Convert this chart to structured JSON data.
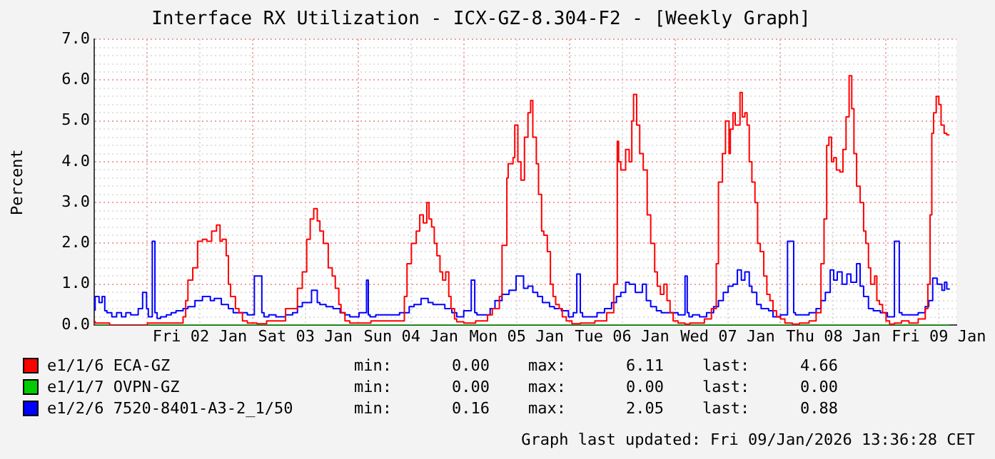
{
  "chart_data": {
    "type": "step",
    "title": "Interface RX Utilization - ICX-GZ-8.304-F2 - [Weekly Graph]",
    "ylabel": "Percent",
    "xlim": [
      "2026-01-01T12:00",
      "2026-01-09T16:00"
    ],
    "xticks": [
      {
        "value": "2026-01-02T00:00",
        "label": null
      },
      {
        "value": "2026-01-02T12:00",
        "label": "Fri 02 Jan"
      },
      {
        "value": "2026-01-03T00:00",
        "label": null
      },
      {
        "value": "2026-01-03T12:00",
        "label": "Sat 03 Jan"
      },
      {
        "value": "2026-01-04T00:00",
        "label": null
      },
      {
        "value": "2026-01-04T12:00",
        "label": "Sun 04 Jan"
      },
      {
        "value": "2026-01-05T00:00",
        "label": null
      },
      {
        "value": "2026-01-05T12:00",
        "label": "Mon 05 Jan"
      },
      {
        "value": "2026-01-06T00:00",
        "label": null
      },
      {
        "value": "2026-01-06T12:00",
        "label": "Tue 06 Jan"
      },
      {
        "value": "2026-01-07T00:00",
        "label": null
      },
      {
        "value": "2026-01-07T12:00",
        "label": "Wed 07 Jan"
      },
      {
        "value": "2026-01-08T00:00",
        "label": null
      },
      {
        "value": "2026-01-08T12:00",
        "label": "Thu 08 Jan"
      },
      {
        "value": "2026-01-09T00:00",
        "label": null
      },
      {
        "value": "2026-01-09T12:00",
        "label": "Fri 09 Jan"
      }
    ],
    "ylim": [
      0,
      7
    ],
    "yticks": [
      {
        "value": 0,
        "label": "0.0"
      },
      {
        "value": 0.2,
        "label": null
      },
      {
        "value": 0.4,
        "label": null
      },
      {
        "value": 0.6,
        "label": null
      },
      {
        "value": 0.8,
        "label": null
      },
      {
        "value": 1,
        "label": "1.0"
      },
      {
        "value": 1.2,
        "label": null
      },
      {
        "value": 1.4,
        "label": null
      },
      {
        "value": 1.6,
        "label": null
      },
      {
        "value": 1.8,
        "label": null
      },
      {
        "value": 2,
        "label": "2.0"
      },
      {
        "value": 2.2,
        "label": null
      },
      {
        "value": 2.4,
        "label": null
      },
      {
        "value": 2.6,
        "label": null
      },
      {
        "value": 2.8,
        "label": null
      },
      {
        "value": 3,
        "label": "3.0"
      },
      {
        "value": 3.2,
        "label": null
      },
      {
        "value": 3.4,
        "label": null
      },
      {
        "value": 3.6,
        "label": null
      },
      {
        "value": 3.8,
        "label": null
      },
      {
        "value": 4,
        "label": "4.0"
      },
      {
        "value": 4.2,
        "label": null
      },
      {
        "value": 4.4,
        "label": null
      },
      {
        "value": 4.6,
        "label": null
      },
      {
        "value": 4.8,
        "label": null
      },
      {
        "value": 5,
        "label": "5.0"
      },
      {
        "value": 5.2,
        "label": null
      },
      {
        "value": 5.4,
        "label": null
      },
      {
        "value": 5.6,
        "label": null
      },
      {
        "value": 5.8,
        "label": null
      },
      {
        "value": 6,
        "label": "6.0"
      },
      {
        "value": 6.2,
        "label": null
      },
      {
        "value": 6.4,
        "label": null
      },
      {
        "value": 6.6,
        "label": null
      },
      {
        "value": 6.8,
        "label": null
      },
      {
        "value": 7,
        "label": "7.0"
      }
    ],
    "grid": true,
    "legend": "bottom left",
    "marker": "none",
    "line_style": "solid",
    "series": [
      {
        "name": "e1/1/6 ECA-GZ",
        "color": "#ff0000",
        "x": [
          "2026-01-01T12:12",
          "2026-01-01T15:30",
          "2026-01-02T00:06",
          "2026-01-02T04:24",
          "2026-01-02T08:12",
          "2026-01-02T08:48",
          "2026-01-02T09:18",
          "2026-01-02T10:24",
          "2026-01-02T11:30",
          "2026-01-02T12:36",
          "2026-01-02T13:36",
          "2026-01-02T14:42",
          "2026-01-02T15:48",
          "2026-01-02T16:36",
          "2026-01-02T17:06",
          "2026-01-02T18:00",
          "2026-01-02T18:30",
          "2026-01-02T19:00",
          "2026-01-02T20:06",
          "2026-01-02T20:54",
          "2026-01-02T21:42",
          "2026-01-02T22:48",
          "2026-01-03T01:00",
          "2026-01-03T03:12",
          "2026-01-03T07:30",
          "2026-01-03T10:12",
          "2026-01-03T11:18",
          "2026-01-03T12:18",
          "2026-01-03T13:06",
          "2026-01-03T13:54",
          "2026-01-03T14:42",
          "2026-01-03T15:18",
          "2026-01-03T16:06",
          "2026-01-03T17:12",
          "2026-01-03T18:06",
          "2026-01-03T18:48",
          "2026-01-03T19:36",
          "2026-01-03T20:06",
          "2026-01-03T21:00",
          "2026-01-03T22:06",
          "2026-01-03T23:42",
          "2026-01-04T02:54",
          "2026-01-04T06:12",
          "2026-01-04T08:24",
          "2026-01-04T10:30",
          "2026-01-04T11:06",
          "2026-01-04T12:06",
          "2026-01-04T13:12",
          "2026-01-04T14:00",
          "2026-01-04T14:48",
          "2026-01-04T15:36",
          "2026-01-04T16:06",
          "2026-01-04T16:42",
          "2026-01-04T17:18",
          "2026-01-04T17:54",
          "2026-01-04T18:36",
          "2026-01-04T19:12",
          "2026-01-04T19:54",
          "2026-01-04T20:36",
          "2026-01-04T21:06",
          "2026-01-04T21:54",
          "2026-01-04T22:24",
          "2026-01-05T00:00",
          "2026-01-05T02:42",
          "2026-01-05T05:24",
          "2026-01-05T06:30",
          "2026-01-05T08:06",
          "2026-01-05T08:42",
          "2026-01-05T09:48",
          "2026-01-05T10:06",
          "2026-01-05T11:12",
          "2026-01-05T11:36",
          "2026-01-05T12:18",
          "2026-01-05T13:00",
          "2026-01-05T13:48",
          "2026-01-05T14:36",
          "2026-01-05T15:12",
          "2026-01-05T15:42",
          "2026-01-05T16:30",
          "2026-01-05T17:00",
          "2026-01-05T17:42",
          "2026-01-05T18:12",
          "2026-01-05T19:00",
          "2026-01-05T19:42",
          "2026-01-05T20:18",
          "2026-01-05T20:54",
          "2026-01-05T21:42",
          "2026-01-05T22:24",
          "2026-01-05T23:18",
          "2026-01-06T00:36",
          "2026-01-06T02:30",
          "2026-01-06T05:48",
          "2026-01-06T08:30",
          "2026-01-06T10:06",
          "2026-01-06T10:54",
          "2026-01-06T11:12",
          "2026-01-06T11:42",
          "2026-01-06T12:48",
          "2026-01-06T13:36",
          "2026-01-06T14:12",
          "2026-01-06T14:36",
          "2026-01-06T15:18",
          "2026-01-06T16:00",
          "2026-01-06T16:48",
          "2026-01-06T17:42",
          "2026-01-06T18:30",
          "2026-01-06T19:24",
          "2026-01-06T20:00",
          "2026-01-06T20:42",
          "2026-01-06T21:30",
          "2026-01-06T22:12",
          "2026-01-06T22:54",
          "2026-01-06T23:36",
          "2026-01-07T00:42",
          "2026-01-07T02:18",
          "2026-01-07T03:24",
          "2026-01-07T06:42",
          "2026-01-07T08:18",
          "2026-01-07T09:24",
          "2026-01-07T09:54",
          "2026-01-07T10:48",
          "2026-01-07T11:30",
          "2026-01-07T12:18",
          "2026-01-07T12:36",
          "2026-01-07T13:12",
          "2026-01-07T13:42",
          "2026-01-07T14:12",
          "2026-01-07T14:48",
          "2026-01-07T15:18",
          "2026-01-07T15:54",
          "2026-01-07T16:24",
          "2026-01-07T16:54",
          "2026-01-07T17:30",
          "2026-01-07T18:12",
          "2026-01-07T18:48",
          "2026-01-07T19:24",
          "2026-01-07T20:12",
          "2026-01-07T20:54",
          "2026-01-07T21:36",
          "2026-01-07T22:18",
          "2026-01-07T23:06",
          "2026-01-08T00:00",
          "2026-01-08T01:00",
          "2026-01-08T02:42",
          "2026-01-08T04:18",
          "2026-01-08T06:30",
          "2026-01-08T08:06",
          "2026-01-08T09:12",
          "2026-01-08T09:54",
          "2026-01-08T10:30",
          "2026-01-08T11:00",
          "2026-01-08T11:36",
          "2026-01-08T12:06",
          "2026-01-08T12:42",
          "2026-01-08T13:30",
          "2026-01-08T14:12",
          "2026-01-08T14:54",
          "2026-01-08T15:36",
          "2026-01-08T16:12",
          "2026-01-08T16:42",
          "2026-01-08T17:18",
          "2026-01-08T18:06",
          "2026-01-08T18:54",
          "2026-01-08T19:24",
          "2026-01-08T20:00",
          "2026-01-08T20:30",
          "2026-01-08T21:24",
          "2026-01-08T21:54",
          "2026-01-08T22:30",
          "2026-01-08T23:12",
          "2026-01-09T00:00",
          "2026-01-09T00:48",
          "2026-01-09T01:54",
          "2026-01-09T03:30",
          "2026-01-09T05:12",
          "2026-01-09T07:18",
          "2026-01-09T08:54",
          "2026-01-09T09:30",
          "2026-01-09T10:00",
          "2026-01-09T10:24",
          "2026-01-09T10:48",
          "2026-01-09T11:24",
          "2026-01-09T12:00",
          "2026-01-09T12:30",
          "2026-01-09T13:12",
          "2026-01-09T13:48",
          "2026-01-09T14:24"
        ],
        "values": [
          0.1,
          0.05,
          0,
          0.05,
          0.05,
          0.2,
          0.6,
          1.1,
          1.4,
          2.05,
          2.1,
          2.05,
          2.3,
          2.45,
          2.05,
          2.1,
          1.7,
          1.0,
          0.7,
          0.4,
          0.3,
          0.1,
          0.05,
          0.03,
          0.1,
          0.4,
          0.9,
          1.3,
          2.1,
          2.6,
          2.85,
          2.55,
          2.3,
          2.0,
          1.4,
          1.2,
          0.9,
          0.5,
          0.3,
          0.1,
          0.05,
          0.05,
          0.1,
          0.1,
          0.1,
          0.7,
          1.5,
          2.0,
          2.3,
          2.7,
          2.5,
          3.0,
          2.6,
          2.4,
          2.0,
          1.7,
          1.3,
          1.1,
          1.3,
          0.7,
          0.4,
          0.15,
          0.08,
          0.05,
          0.1,
          0.25,
          0.4,
          0.7,
          1.95,
          3.6,
          3.95,
          4.1,
          4.9,
          4.0,
          3.55,
          4.6,
          5.2,
          5.5,
          4.6,
          3.95,
          3.2,
          2.3,
          2.2,
          1.8,
          1.0,
          0.7,
          0.5,
          0.4,
          0.2,
          0.1,
          0.03,
          0.05,
          0.1,
          0.3,
          1.0,
          4.5,
          4.0,
          3.8,
          4.3,
          4.0,
          5.0,
          5.65,
          4.9,
          4.2,
          3.8,
          2.7,
          2.0,
          1.3,
          0.95,
          0.75,
          1.0,
          0.6,
          0.3,
          0.1,
          0.05,
          0.02,
          0.05,
          0.15,
          0.4,
          1.5,
          3.5,
          4.2,
          5.0,
          4.2,
          4.8,
          5.2,
          4.9,
          4.9,
          5.7,
          5.1,
          5.2,
          4.9,
          4.0,
          3.5,
          3.0,
          2.0,
          1.8,
          1.2,
          0.75,
          0.6,
          0.35,
          0.2,
          0.15,
          0.05,
          0.02,
          0.05,
          0.1,
          0.3,
          1.5,
          2.6,
          4.4,
          4.6,
          4.0,
          4.1,
          3.8,
          3.75,
          4.3,
          5.1,
          6.11,
          5.3,
          4.2,
          3.4,
          3.0,
          2.3,
          2.0,
          1.4,
          1.0,
          1.2,
          0.6,
          0.5,
          0.3,
          0.1,
          0.02,
          0.05,
          0.1,
          0.05,
          0.15,
          0.4,
          1.0,
          2.7,
          4.7,
          5.2,
          5.6,
          5.4,
          4.9,
          4.7,
          4.66
        ]
      },
      {
        "name": "e1/1/7 OVPN-GZ",
        "color": "#00cc00",
        "x": [
          "2026-01-01T12:12",
          "2026-01-09T14:24"
        ],
        "values": [
          0,
          0
        ]
      },
      {
        "name": "e1/2/6 7520-8401-A3-2_1/50",
        "color": "#0000ff",
        "x": [
          "2026-01-01T12:12",
          "2026-01-01T13:06",
          "2026-01-01T13:48",
          "2026-01-01T14:24",
          "2026-01-01T14:54",
          "2026-01-01T16:00",
          "2026-01-01T17:06",
          "2026-01-01T18:12",
          "2026-01-01T19:12",
          "2026-01-01T20:18",
          "2026-01-01T22:00",
          "2026-01-01T23:00",
          "2026-01-01T23:54",
          "2026-01-02T00:18",
          "2026-01-02T01:12",
          "2026-01-02T01:48",
          "2026-01-02T02:18",
          "2026-01-02T03:06",
          "2026-01-02T04:24",
          "2026-01-02T05:30",
          "2026-01-02T06:36",
          "2026-01-02T08:12",
          "2026-01-02T09:18",
          "2026-01-02T10:54",
          "2026-01-02T12:36",
          "2026-01-02T14:24",
          "2026-01-02T15:18",
          "2026-01-02T16:54",
          "2026-01-02T18:30",
          "2026-01-02T19:36",
          "2026-01-02T20:42",
          "2026-01-02T22:48",
          "2026-01-03T00:24",
          "2026-01-03T02:06",
          "2026-01-03T02:36",
          "2026-01-03T03:42",
          "2026-01-03T05:18",
          "2026-01-03T07:30",
          "2026-01-03T09:06",
          "2026-01-03T10:12",
          "2026-01-03T11:18",
          "2026-01-03T12:18",
          "2026-01-03T13:24",
          "2026-01-03T14:42",
          "2026-01-03T15:18",
          "2026-01-03T16:42",
          "2026-01-03T18:18",
          "2026-01-03T19:54",
          "2026-01-03T21:00",
          "2026-01-03T22:06",
          "2026-01-04T00:12",
          "2026-01-04T01:54",
          "2026-01-04T02:18",
          "2026-01-04T02:42",
          "2026-01-04T04:00",
          "2026-01-04T06:12",
          "2026-01-04T08:54",
          "2026-01-04T09:24",
          "2026-01-04T11:36",
          "2026-01-04T12:42",
          "2026-01-04T14:18",
          "2026-01-04T15:54",
          "2026-01-04T17:00",
          "2026-01-04T18:36",
          "2026-01-04T19:42",
          "2026-01-04T21:18",
          "2026-01-04T22:24",
          "2026-01-05T00:00",
          "2026-01-05T01:42",
          "2026-01-05T02:30",
          "2026-01-05T03:00",
          "2026-01-05T04:24",
          "2026-01-05T06:00",
          "2026-01-05T07:06",
          "2026-01-05T08:42",
          "2026-01-05T10:18",
          "2026-01-05T11:54",
          "2026-01-05T13:36",
          "2026-01-05T14:36",
          "2026-01-05T15:42",
          "2026-01-05T16:48",
          "2026-01-05T17:54",
          "2026-01-05T19:30",
          "2026-01-05T20:36",
          "2026-01-05T22:12",
          "2026-01-05T23:48",
          "2026-01-06T00:54",
          "2026-01-06T01:42",
          "2026-01-06T02:30",
          "2026-01-06T03:00",
          "2026-01-06T04:12",
          "2026-01-06T06:18",
          "2026-01-06T08:00",
          "2026-01-06T09:36",
          "2026-01-06T10:42",
          "2026-01-06T11:42",
          "2026-01-06T12:48",
          "2026-01-06T13:36",
          "2026-01-06T15:00",
          "2026-01-06T16:36",
          "2026-01-06T17:30",
          "2026-01-06T18:30",
          "2026-01-06T19:48",
          "2026-01-06T20:54",
          "2026-01-06T23:06",
          "2026-01-07T00:42",
          "2026-01-07T02:18",
          "2026-01-07T02:48",
          "2026-01-07T03:12",
          "2026-01-07T04:00",
          "2026-01-07T05:36",
          "2026-01-07T07:12",
          "2026-01-07T08:48",
          "2026-01-07T09:54",
          "2026-01-07T11:00",
          "2026-01-07T12:06",
          "2026-01-07T13:12",
          "2026-01-07T14:12",
          "2026-01-07T15:06",
          "2026-01-07T15:54",
          "2026-01-07T16:54",
          "2026-01-07T17:30",
          "2026-01-07T18:36",
          "2026-01-07T19:36",
          "2026-01-07T21:18",
          "2026-01-07T22:18",
          "2026-01-08T00:00",
          "2026-01-08T01:36",
          "2026-01-08T03:00",
          "2026-01-08T03:24",
          "2026-01-08T04:48",
          "2026-01-08T06:30",
          "2026-01-08T08:06",
          "2026-01-08T09:12",
          "2026-01-08T10:12",
          "2026-01-08T11:18",
          "2026-01-08T12:06",
          "2026-01-08T12:54",
          "2026-01-08T14:00",
          "2026-01-08T15:06",
          "2026-01-08T16:00",
          "2026-01-08T17:18",
          "2026-01-08T18:06",
          "2026-01-08T18:54",
          "2026-01-08T20:00",
          "2026-01-08T21:06",
          "2026-01-08T22:42",
          "2026-01-09T00:18",
          "2026-01-09T01:54",
          "2026-01-09T03:00",
          "2026-01-09T03:36",
          "2026-01-09T05:12",
          "2026-01-09T07:18",
          "2026-01-09T08:54",
          "2026-01-09T09:42",
          "2026-01-09T10:36",
          "2026-01-09T11:36",
          "2026-01-09T12:42",
          "2026-01-09T13:18",
          "2026-01-09T13:48",
          "2026-01-09T14:30"
        ],
        "values": [
          0.35,
          0.7,
          0.55,
          0.7,
          0.35,
          0.3,
          0.2,
          0.3,
          0.2,
          0.3,
          0.25,
          0.4,
          0.8,
          0.4,
          0.2,
          2.05,
          0.3,
          0.16,
          0.2,
          0.25,
          0.3,
          0.35,
          0.4,
          0.45,
          0.6,
          0.7,
          0.6,
          0.65,
          0.5,
          0.4,
          0.3,
          0.3,
          0.25,
          1.2,
          0.3,
          0.2,
          0.25,
          0.2,
          0.25,
          0.3,
          0.45,
          0.55,
          0.55,
          0.85,
          0.55,
          0.5,
          0.45,
          0.4,
          0.3,
          0.25,
          0.2,
          0.3,
          1.1,
          0.25,
          0.2,
          0.25,
          0.25,
          0.25,
          0.3,
          0.45,
          0.5,
          0.65,
          0.55,
          0.5,
          0.5,
          0.4,
          0.3,
          0.2,
          0.35,
          1.1,
          0.3,
          0.25,
          0.25,
          0.4,
          0.6,
          0.75,
          0.85,
          1.2,
          0.9,
          0.95,
          0.8,
          0.7,
          0.55,
          0.45,
          0.4,
          0.35,
          0.2,
          0.3,
          1.25,
          0.3,
          0.2,
          0.2,
          0.3,
          0.4,
          0.55,
          0.7,
          0.8,
          1.05,
          1.0,
          0.8,
          1.0,
          0.6,
          0.45,
          0.35,
          0.3,
          0.3,
          0.25,
          1.2,
          0.3,
          0.2,
          0.25,
          0.2,
          0.3,
          0.45,
          0.6,
          0.8,
          0.95,
          1.0,
          1.35,
          1.1,
          1.3,
          0.95,
          0.8,
          0.5,
          0.4,
          0.35,
          0.2,
          0.25,
          2.05,
          0.3,
          0.25,
          0.25,
          0.3,
          0.4,
          0.6,
          0.8,
          1.35,
          1.1,
          1.3,
          1.0,
          1.25,
          1.05,
          1.5,
          0.95,
          0.7,
          0.4,
          0.35,
          0.3,
          0.2,
          2.05,
          0.3,
          0.25,
          0.25,
          0.3,
          0.45,
          0.6,
          1.15,
          1.0,
          0.85,
          1.05,
          0.88
        ]
      }
    ],
    "annotations": [
      "min: 0.00 max: 6.11 last: 4.66",
      "min: 0.00 max: 0.00 last: 0.00",
      "min: 0.16 max: 2.05 last: 0.88",
      "Graph last updated: Fri 09/Jan/2026 13:36:28 CET"
    ]
  }
}
